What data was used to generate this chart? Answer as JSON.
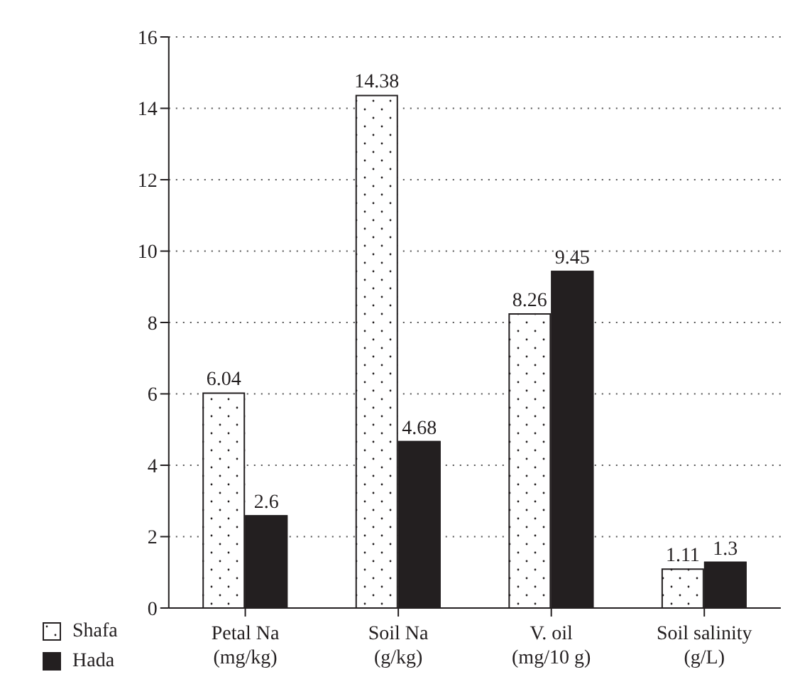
{
  "chart_data": {
    "type": "bar",
    "categories": [
      "Petal Na\n(mg/kg)",
      "Soil Na\n(g/kg)",
      "V. oil\n(mg/10 g)",
      "Soil salinity\n(g/L)"
    ],
    "series": [
      {
        "name": "Shafa",
        "color": "#ffffff",
        "values": [
          6.04,
          14.38,
          8.26,
          1.11
        ]
      },
      {
        "name": "Hada",
        "color": "#231f20",
        "values": [
          2.6,
          4.68,
          9.45,
          1.3
        ]
      }
    ],
    "ylim": [
      0,
      16
    ],
    "yticks": [
      0,
      2,
      4,
      6,
      8,
      10,
      12,
      14,
      16
    ],
    "grid": "y",
    "legend": "bottom left",
    "data_labels": true
  }
}
